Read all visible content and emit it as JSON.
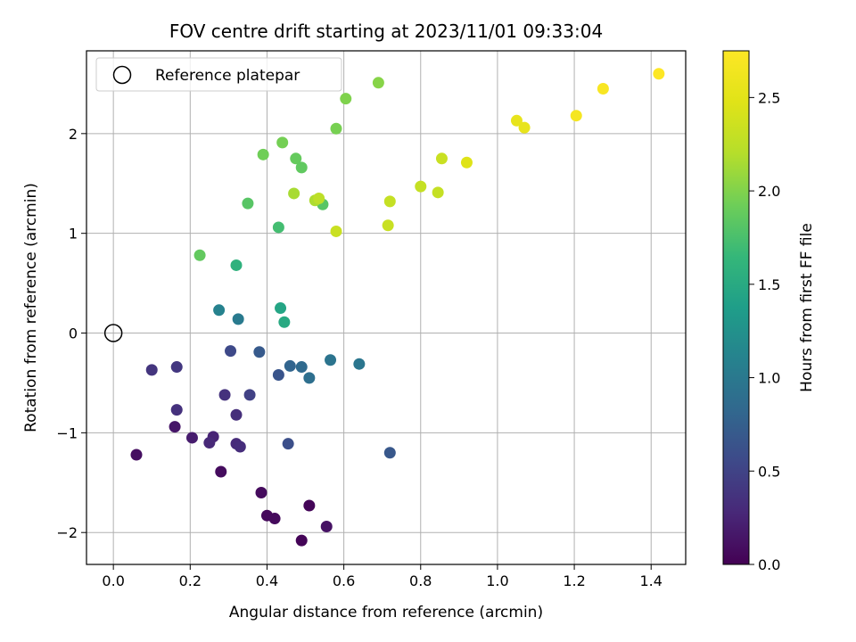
{
  "chart_data": {
    "type": "scatter",
    "title": "FOV centre drift starting at 2023/11/01 09:33:04",
    "xlabel": "Angular distance from reference (arcmin)",
    "ylabel": "Rotation from reference (arcmin)",
    "xlim": [
      -0.07,
      1.49
    ],
    "ylim": [
      -2.32,
      2.83
    ],
    "xticks": [
      0.0,
      0.2,
      0.4,
      0.6,
      0.8,
      1.0,
      1.2,
      1.4
    ],
    "xtick_labels": [
      "0.0",
      "0.2",
      "0.4",
      "0.6",
      "0.8",
      "1.0",
      "1.2",
      "1.4"
    ],
    "yticks": [
      -2,
      -1,
      0,
      1,
      2
    ],
    "ytick_labels": [
      "−2",
      "−1",
      "0",
      "1",
      "2"
    ],
    "grid": true,
    "colormap": "viridis",
    "colorbar": {
      "label": "Hours from first FF file",
      "range": [
        0.0,
        2.75
      ],
      "ticks": [
        0.0,
        0.5,
        1.0,
        1.5,
        2.0,
        2.5
      ],
      "tick_labels": [
        "0.0",
        "0.5",
        "1.0",
        "1.5",
        "2.0",
        "2.5"
      ]
    },
    "legend": {
      "placement": "top-left",
      "entries": [
        {
          "label": "Reference platepar",
          "marker": "open-circle"
        }
      ]
    },
    "reference_point": {
      "x": 0.0,
      "y": 0.0
    },
    "points": [
      {
        "x": 0.49,
        "y": -2.08,
        "c": 0.02
      },
      {
        "x": 0.51,
        "y": -1.73,
        "c": 0.03
      },
      {
        "x": 0.4,
        "y": -1.83,
        "c": 0.05
      },
      {
        "x": 0.42,
        "y": -1.86,
        "c": 0.06
      },
      {
        "x": 0.385,
        "y": -1.6,
        "c": 0.07
      },
      {
        "x": 0.28,
        "y": -1.39,
        "c": 0.08
      },
      {
        "x": 0.06,
        "y": -1.22,
        "c": 0.1
      },
      {
        "x": 0.555,
        "y": -1.94,
        "c": 0.12
      },
      {
        "x": 0.16,
        "y": -0.94,
        "c": 0.15
      },
      {
        "x": 0.205,
        "y": -1.05,
        "c": 0.2
      },
      {
        "x": 0.26,
        "y": -1.04,
        "c": 0.25
      },
      {
        "x": 0.25,
        "y": -1.1,
        "c": 0.28
      },
      {
        "x": 0.32,
        "y": -1.11,
        "c": 0.3
      },
      {
        "x": 0.33,
        "y": -1.14,
        "c": 0.32
      },
      {
        "x": 0.32,
        "y": -0.82,
        "c": 0.33
      },
      {
        "x": 0.165,
        "y": -0.77,
        "c": 0.35
      },
      {
        "x": 0.29,
        "y": -0.62,
        "c": 0.36
      },
      {
        "x": 0.1,
        "y": -0.37,
        "c": 0.38
      },
      {
        "x": 0.165,
        "y": -0.34,
        "c": 0.4
      },
      {
        "x": 0.355,
        "y": -0.62,
        "c": 0.48
      },
      {
        "x": 0.305,
        "y": -0.18,
        "c": 0.55
      },
      {
        "x": 0.455,
        "y": -1.11,
        "c": 0.6
      },
      {
        "x": 0.43,
        "y": -0.42,
        "c": 0.65
      },
      {
        "x": 0.72,
        "y": -1.2,
        "c": 0.68
      },
      {
        "x": 0.38,
        "y": -0.19,
        "c": 0.7
      },
      {
        "x": 0.46,
        "y": -0.33,
        "c": 0.8
      },
      {
        "x": 0.49,
        "y": -0.34,
        "c": 0.85
      },
      {
        "x": 0.51,
        "y": -0.45,
        "c": 0.9
      },
      {
        "x": 0.565,
        "y": -0.27,
        "c": 0.95
      },
      {
        "x": 0.64,
        "y": -0.31,
        "c": 0.97
      },
      {
        "x": 0.325,
        "y": 0.14,
        "c": 1.02
      },
      {
        "x": 0.275,
        "y": 0.23,
        "c": 1.1
      },
      {
        "x": 0.435,
        "y": 0.25,
        "c": 1.45
      },
      {
        "x": 0.445,
        "y": 0.11,
        "c": 1.5
      },
      {
        "x": 0.32,
        "y": 0.68,
        "c": 1.58
      },
      {
        "x": 0.43,
        "y": 1.06,
        "c": 1.72
      },
      {
        "x": 0.225,
        "y": 0.78,
        "c": 1.87
      },
      {
        "x": 0.35,
        "y": 1.3,
        "c": 1.82
      },
      {
        "x": 0.545,
        "y": 1.29,
        "c": 1.82
      },
      {
        "x": 0.475,
        "y": 1.75,
        "c": 1.88
      },
      {
        "x": 0.49,
        "y": 1.66,
        "c": 1.86
      },
      {
        "x": 0.39,
        "y": 1.79,
        "c": 1.93
      },
      {
        "x": 0.44,
        "y": 1.91,
        "c": 1.95
      },
      {
        "x": 0.58,
        "y": 2.05,
        "c": 1.96
      },
      {
        "x": 0.605,
        "y": 2.35,
        "c": 1.99
      },
      {
        "x": 0.69,
        "y": 2.51,
        "c": 2.02
      },
      {
        "x": 0.47,
        "y": 1.4,
        "c": 2.15
      },
      {
        "x": 0.525,
        "y": 1.33,
        "c": 2.17
      },
      {
        "x": 0.535,
        "y": 1.35,
        "c": 2.25
      },
      {
        "x": 0.58,
        "y": 1.02,
        "c": 2.33
      },
      {
        "x": 0.715,
        "y": 1.08,
        "c": 2.32
      },
      {
        "x": 0.72,
        "y": 1.32,
        "c": 2.3
      },
      {
        "x": 0.8,
        "y": 1.47,
        "c": 2.3
      },
      {
        "x": 0.845,
        "y": 1.41,
        "c": 2.3
      },
      {
        "x": 0.855,
        "y": 1.75,
        "c": 2.33
      },
      {
        "x": 0.92,
        "y": 1.71,
        "c": 2.47
      },
      {
        "x": 1.05,
        "y": 2.13,
        "c": 2.55
      },
      {
        "x": 1.07,
        "y": 2.06,
        "c": 2.55
      },
      {
        "x": 1.205,
        "y": 2.18,
        "c": 2.67
      },
      {
        "x": 1.275,
        "y": 2.45,
        "c": 2.7
      },
      {
        "x": 1.42,
        "y": 2.6,
        "c": 2.75
      }
    ]
  }
}
